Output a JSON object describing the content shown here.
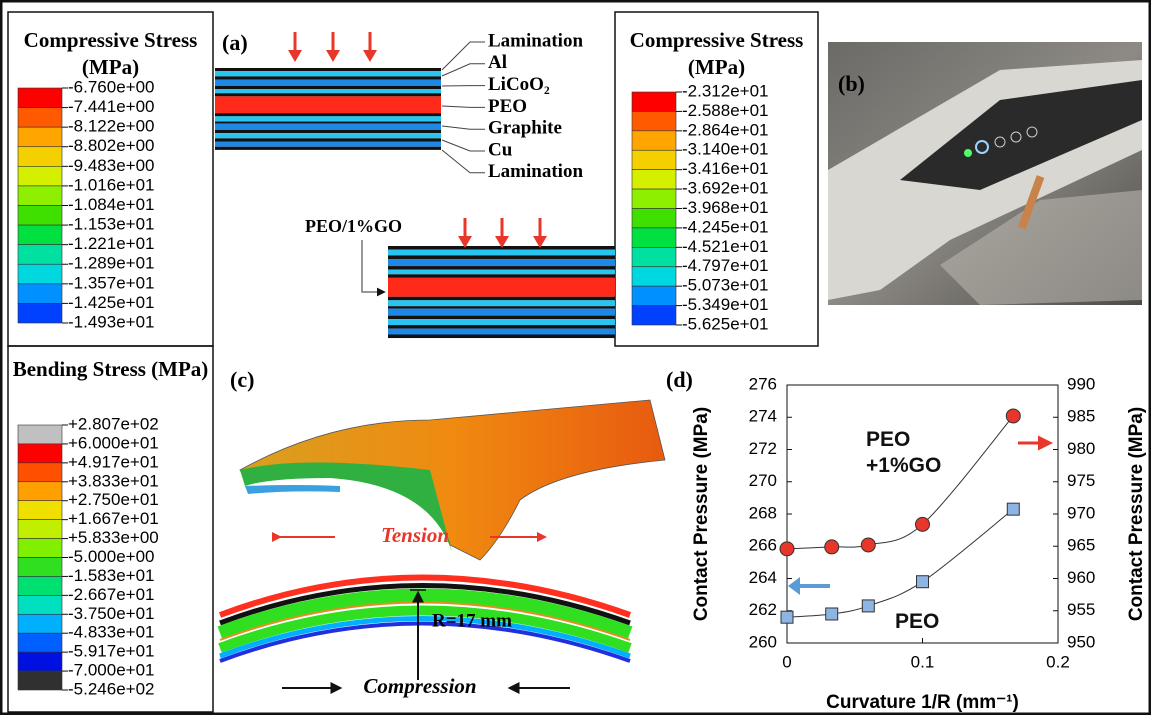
{
  "panel_labels": [
    "(a)",
    "(b)",
    "(c)",
    "(d)"
  ],
  "legends": [
    {
      "title": "Compressive Stress (MPa)",
      "labels": [
        "-6.760e+00",
        "-7.441e+00",
        "-8.122e+00",
        "-8.802e+00",
        "-9.483e+00",
        "-1.016e+01",
        "-1.084e+01",
        "-1.153e+01",
        "-1.221e+01",
        "-1.289e+01",
        "-1.357e+01",
        "-1.425e+01",
        "-1.493e+01"
      ],
      "colors": [
        "#ff0000",
        "#ff5a00",
        "#ffa500",
        "#f5d000",
        "#d4f000",
        "#8ef000",
        "#3fe000",
        "#00e040",
        "#00e0a0",
        "#00d8e0",
        "#0090ff",
        "#0040ff"
      ]
    },
    {
      "title": "Compressive Stress (MPa)",
      "labels": [
        "-2.312e+01",
        "-2.588e+01",
        "-2.864e+01",
        "-3.140e+01",
        "-3.416e+01",
        "-3.692e+01",
        "-3.968e+01",
        "-4.245e+01",
        "-4.521e+01",
        "-4.797e+01",
        "-5.073e+01",
        "-5.349e+01",
        "-5.625e+01"
      ],
      "colors": [
        "#ff0000",
        "#ff5a00",
        "#ffa500",
        "#f5d000",
        "#d4f000",
        "#8ef000",
        "#3fe000",
        "#00e040",
        "#00e0a0",
        "#00d8e0",
        "#0090ff",
        "#0040ff"
      ]
    },
    {
      "title": "Bending Stress (MPa)",
      "labels": [
        "+2.807e+02",
        "+6.000e+01",
        "+4.917e+01",
        "+3.833e+01",
        "+2.750e+01",
        "+1.667e+01",
        "+5.833e+00",
        "-5.000e+00",
        "-1.583e+01",
        "-2.667e+01",
        "-3.750e+01",
        "-4.833e+01",
        "-5.917e+01",
        "-7.000e+01",
        "-5.246e+02"
      ],
      "colors": [
        "#c0c0c0",
        "#ff0000",
        "#ff5000",
        "#ffa000",
        "#f0e000",
        "#c0f000",
        "#80f000",
        "#30e020",
        "#00e070",
        "#00e0c0",
        "#00b0ff",
        "#0060ff",
        "#0010e0",
        "#303030"
      ]
    }
  ],
  "panel_a": {
    "layers": [
      "Lamination",
      "Al",
      "LiCoO₂",
      "PEO",
      "Graphite",
      "Cu",
      "Lamination"
    ],
    "modified_label": "PEO/1%GO"
  },
  "panel_c": {
    "tension": "Tension",
    "compression": "Compression",
    "radius": "R=17 mm"
  },
  "chart_data": {
    "type": "line",
    "x_label": "Curvature 1/R (mm⁻¹)",
    "y_label": "Contact Pressure (MPa)",
    "y2_label": "Contact Pressure (MPa)",
    "x": [
      0,
      0.033,
      0.06,
      0.1,
      0.167
    ],
    "xlim": [
      0,
      0.2
    ],
    "xticks": [
      0,
      0.1,
      0.2
    ],
    "ylim": [
      260,
      276
    ],
    "yticks": [
      260,
      262,
      264,
      266,
      268,
      270,
      272,
      274,
      276
    ],
    "y2lim": [
      950,
      990
    ],
    "y2ticks": [
      950,
      955,
      960,
      965,
      970,
      975,
      980,
      985,
      990
    ],
    "series": [
      {
        "name": "PEO +1%GO",
        "color": "#e8372a",
        "marker": "circle",
        "axis": "y2",
        "values": [
          964.6,
          964.9,
          965.2,
          968.4,
          985.2
        ]
      },
      {
        "name": "PEO",
        "color": "#8db4e2",
        "marker": "square",
        "values": [
          261.6,
          261.8,
          262.3,
          263.8,
          268.3
        ]
      }
    ]
  }
}
